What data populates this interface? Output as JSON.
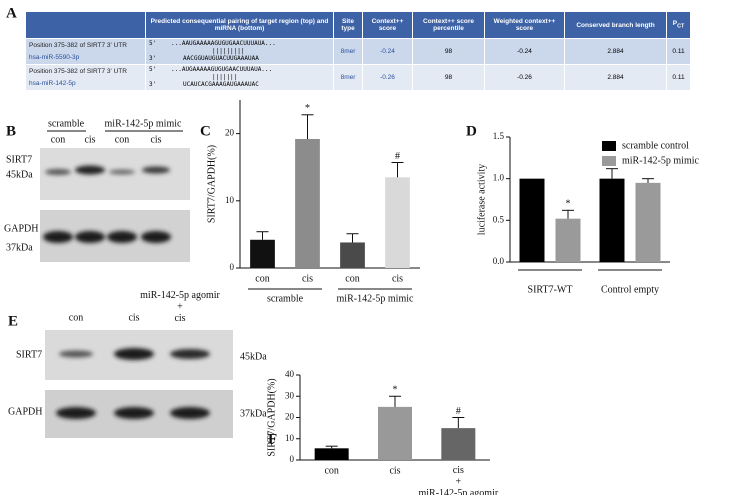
{
  "panel_labels": [
    "A",
    "B",
    "C",
    "D",
    "E",
    "F"
  ],
  "table": {
    "headers": [
      "Predicted consequential pairing of target region (top) and miRNA (bottom)",
      "Site type",
      "Context++ score",
      "Context++ score percentile",
      "Weighted context++ score",
      "Conserved branch length",
      {
        "main": "P",
        "sub": "CT"
      }
    ],
    "rows": [
      {
        "position": "Position 375-382 of SIRT7 3' UTR",
        "mirna": "hsa-miR-5590-3p",
        "target_end": "5'",
        "target": "...AAUGAAAAAGUGUGAACUUUAUA...",
        "bars": "|||||||||",
        "mirna_end": "3'",
        "mirna_seq": "AACGGUAUGUACUUGAAAUAA",
        "cells": [
          "8mer",
          "-0.24",
          "98",
          "-0.24",
          "2.884",
          "0.11"
        ]
      },
      {
        "position": "Position 375-382 of SIRT7 3' UTR",
        "mirna": "hsa-miR-142-5p",
        "target_end": "5'",
        "target": "...AUGAAAAAGUGUGAACUUUAUA...",
        "bars": "|||||||",
        "mirna_end": "3'",
        "mirna_seq": "UCAUCACGAAAGAUGAAAUAC",
        "cells": [
          "8mer",
          "-0.26",
          "98",
          "-0.26",
          "2.884",
          "0.11"
        ]
      }
    ]
  },
  "blot_b": {
    "groups": [
      "scramble",
      "miR-142-5p mimic"
    ],
    "lanes": [
      "con",
      "cis",
      "con",
      "cis"
    ],
    "protein": "SIRT7",
    "protein_kda": "45kDa",
    "control": "GAPDH",
    "control_kda": "37kDa"
  },
  "blot_e": {
    "lanes": [
      "con",
      "cis",
      "miR-142-5p agomir\n+\ncis"
    ],
    "protein": "SIRT7",
    "protein_kda": "45kDa",
    "control": "GAPDH",
    "control_kda": "37kDa"
  },
  "chart_data": [
    {
      "type": "bar",
      "ylabel": "SIRT7/GAPDH(%)",
      "categories": [
        "con",
        "cis",
        "con",
        "cis"
      ],
      "group_labels": [
        "scramble",
        "miR-142-5p mimic"
      ],
      "values": [
        4.2,
        19.2,
        3.8,
        13.5
      ],
      "errors": [
        1.2,
        3.6,
        1.3,
        2.2
      ],
      "colors": [
        "#111111",
        "#8c8c8c",
        "#4a4a4a",
        "#d9d9d9"
      ],
      "markers": [
        null,
        "*",
        null,
        "#"
      ],
      "ylim": [
        0,
        25
      ],
      "yticks": [
        0,
        10,
        20
      ]
    },
    {
      "type": "grouped_bar",
      "ylabel": "luciferase activity",
      "categories": [
        "SIRT7-WT",
        "Control empty"
      ],
      "series": [
        {
          "name": "scramble control",
          "color": "#000000",
          "values": [
            1.0,
            1.0
          ],
          "errors": [
            null,
            0.12
          ]
        },
        {
          "name": "miR-142-5p mimic",
          "color": "#9a9a9a",
          "values": [
            0.52,
            0.95
          ],
          "errors": [
            0.1,
            0.05
          ],
          "markers": [
            "*",
            null
          ]
        }
      ],
      "ylim": [
        0,
        1.5
      ],
      "yticks": [
        {
          "value": 0,
          "label": "0.0"
        },
        0.5,
        {
          "value": 1,
          "label": "1.0"
        },
        1.5
      ],
      "legend": "upper right"
    },
    {
      "type": "bar",
      "ylabel": "SIRT7/GAPDH(%)",
      "categories": [
        "con",
        "cis",
        "cis\n+\nmiR-142-5p agomir"
      ],
      "values": [
        5.5,
        25,
        15
      ],
      "errors": [
        1,
        5,
        5
      ],
      "colors": [
        "#000000",
        "#999999",
        "#666666"
      ],
      "markers": [
        null,
        "*",
        "#"
      ],
      "ylim": [
        0,
        40
      ],
      "yticks": [
        0,
        10,
        20,
        30,
        40
      ]
    }
  ]
}
